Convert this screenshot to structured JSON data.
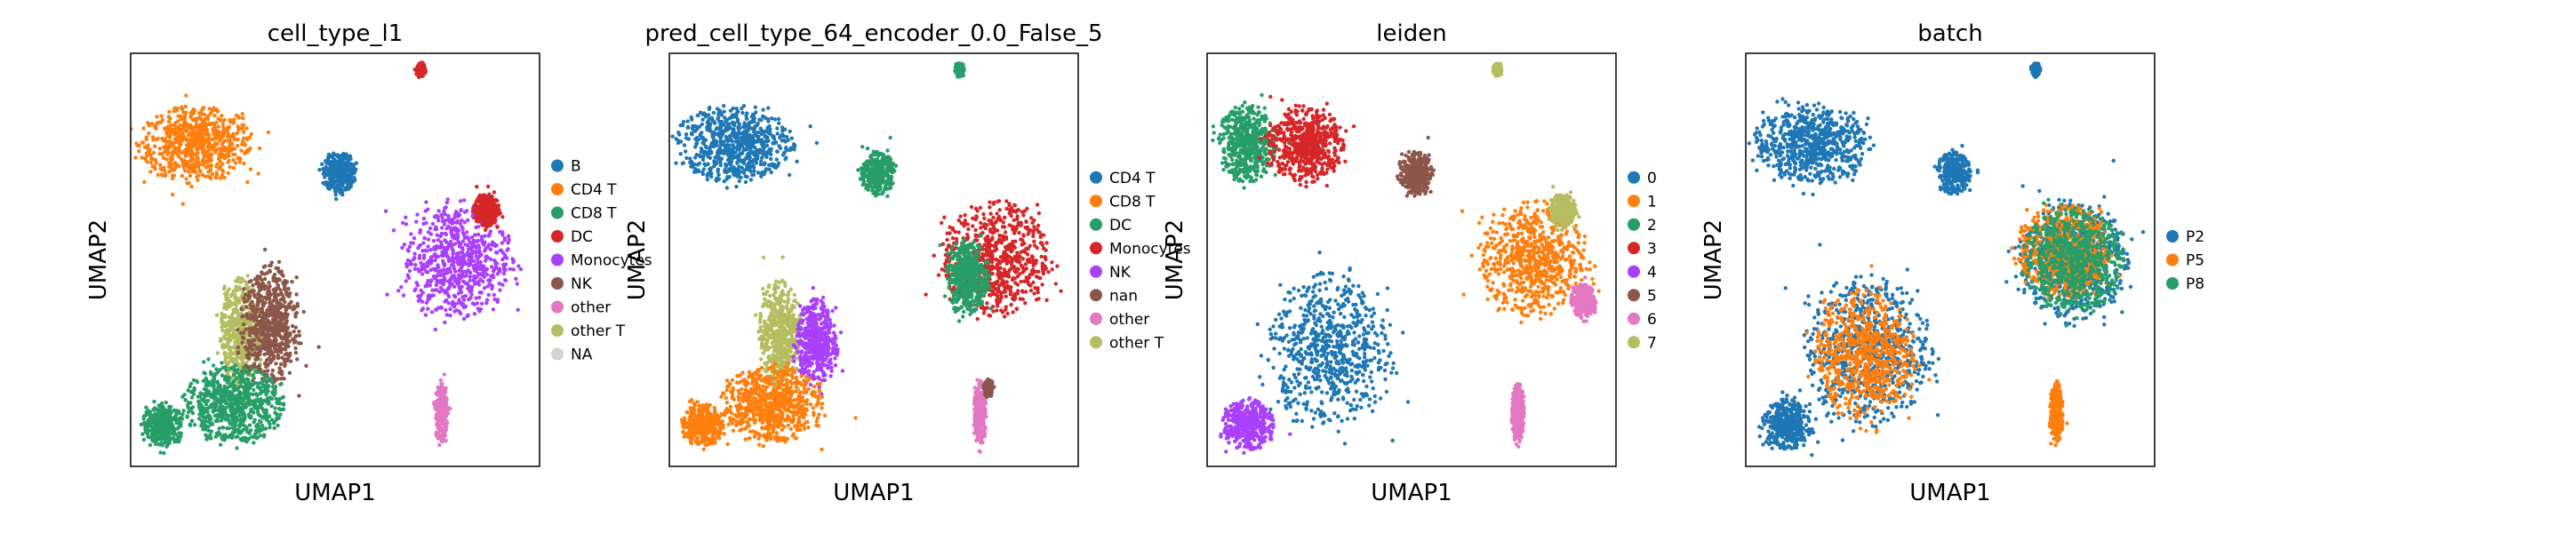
{
  "chart_data": [
    {
      "type": "scatter",
      "title": "cell_type_l1",
      "xlabel": "UMAP1",
      "ylabel": "UMAP2",
      "grid": false,
      "legend_placement": "right",
      "legend": [
        {
          "label": "B",
          "color": "#1f77b4"
        },
        {
          "label": "CD4 T",
          "color": "#ff7f0e"
        },
        {
          "label": "CD8 T",
          "color": "#279e68"
        },
        {
          "label": "DC",
          "color": "#d62728"
        },
        {
          "label": "Monocytes",
          "color": "#aa40fc"
        },
        {
          "label": "NK",
          "color": "#8c564b"
        },
        {
          "label": "other",
          "color": "#e377c2"
        },
        {
          "label": "other T",
          "color": "#b5bd61"
        },
        {
          "label": "NA",
          "color": "#d3d3d3"
        }
      ],
      "clusters": [
        {
          "name": "CD4 T",
          "color": "#ff7f0e",
          "cx": 0.16,
          "cy": 0.78,
          "rx": 0.14,
          "ry": 0.09
        },
        {
          "name": "B",
          "color": "#1f77b4",
          "cx": 0.51,
          "cy": 0.71,
          "rx": 0.04,
          "ry": 0.05
        },
        {
          "name": "DC",
          "color": "#d62728",
          "cx": 0.71,
          "cy": 0.96,
          "rx": 0.01,
          "ry": 0.015
        },
        {
          "name": "Monocytes",
          "color": "#aa40fc",
          "cx": 0.8,
          "cy": 0.5,
          "rx": 0.13,
          "ry": 0.14
        },
        {
          "name": "DC",
          "color": "#d62728",
          "cx": 0.87,
          "cy": 0.62,
          "rx": 0.03,
          "ry": 0.04
        },
        {
          "name": "other T",
          "color": "#b5bd61",
          "cx": 0.27,
          "cy": 0.32,
          "rx": 0.05,
          "ry": 0.13
        },
        {
          "name": "NK",
          "color": "#8c564b",
          "cx": 0.34,
          "cy": 0.34,
          "rx": 0.07,
          "ry": 0.14
        },
        {
          "name": "CD8 T",
          "color": "#279e68",
          "cx": 0.25,
          "cy": 0.15,
          "rx": 0.12,
          "ry": 0.09
        },
        {
          "name": "CD8 T",
          "color": "#279e68",
          "cx": 0.08,
          "cy": 0.1,
          "rx": 0.05,
          "ry": 0.05
        },
        {
          "name": "other",
          "color": "#e377c2",
          "cx": 0.76,
          "cy": 0.13,
          "rx": 0.015,
          "ry": 0.07
        }
      ]
    },
    {
      "type": "scatter",
      "title": "pred_cell_type_64_encoder_0.0_False_5",
      "xlabel": "UMAP1",
      "ylabel": "UMAP2",
      "grid": false,
      "legend_placement": "right",
      "legend": [
        {
          "label": "CD4 T",
          "color": "#1f77b4"
        },
        {
          "label": "CD8 T",
          "color": "#ff7f0e"
        },
        {
          "label": "DC",
          "color": "#279e68"
        },
        {
          "label": "Monocytes",
          "color": "#d62728"
        },
        {
          "label": "NK",
          "color": "#aa40fc"
        },
        {
          "label": "nan",
          "color": "#8c564b"
        },
        {
          "label": "other",
          "color": "#e377c2"
        },
        {
          "label": "other T",
          "color": "#b5bd61"
        }
      ],
      "clusters": [
        {
          "name": "CD4 T",
          "color": "#1f77b4",
          "cx": 0.16,
          "cy": 0.78,
          "rx": 0.14,
          "ry": 0.09
        },
        {
          "name": "DC",
          "color": "#279e68",
          "cx": 0.51,
          "cy": 0.71,
          "rx": 0.04,
          "ry": 0.05
        },
        {
          "name": "DC",
          "color": "#279e68",
          "cx": 0.71,
          "cy": 0.96,
          "rx": 0.01,
          "ry": 0.015
        },
        {
          "name": "Monocytes",
          "color": "#d62728",
          "cx": 0.8,
          "cy": 0.5,
          "rx": 0.13,
          "ry": 0.14
        },
        {
          "name": "DC",
          "color": "#279e68",
          "cx": 0.73,
          "cy": 0.46,
          "rx": 0.05,
          "ry": 0.09
        },
        {
          "name": "other T",
          "color": "#b5bd61",
          "cx": 0.27,
          "cy": 0.32,
          "rx": 0.05,
          "ry": 0.13
        },
        {
          "name": "NK",
          "color": "#aa40fc",
          "cx": 0.36,
          "cy": 0.3,
          "rx": 0.05,
          "ry": 0.1
        },
        {
          "name": "CD8 T",
          "color": "#ff7f0e",
          "cx": 0.25,
          "cy": 0.15,
          "rx": 0.12,
          "ry": 0.09
        },
        {
          "name": "CD8 T",
          "color": "#ff7f0e",
          "cx": 0.08,
          "cy": 0.1,
          "rx": 0.05,
          "ry": 0.05
        },
        {
          "name": "other",
          "color": "#e377c2",
          "cx": 0.76,
          "cy": 0.13,
          "rx": 0.015,
          "ry": 0.07
        },
        {
          "name": "nan",
          "color": "#8c564b",
          "cx": 0.78,
          "cy": 0.19,
          "rx": 0.01,
          "ry": 0.02
        }
      ]
    },
    {
      "type": "scatter",
      "title": "leiden",
      "xlabel": "UMAP1",
      "ylabel": "UMAP2",
      "grid": false,
      "legend_placement": "right",
      "legend": [
        {
          "label": "0",
          "color": "#1f77b4"
        },
        {
          "label": "1",
          "color": "#ff7f0e"
        },
        {
          "label": "2",
          "color": "#279e68"
        },
        {
          "label": "3",
          "color": "#d62728"
        },
        {
          "label": "4",
          "color": "#aa40fc"
        },
        {
          "label": "5",
          "color": "#8c564b"
        },
        {
          "label": "6",
          "color": "#e377c2"
        },
        {
          "label": "7",
          "color": "#b5bd61"
        }
      ],
      "clusters": [
        {
          "name": "2",
          "color": "#279e68",
          "cx": 0.1,
          "cy": 0.78,
          "rx": 0.07,
          "ry": 0.09
        },
        {
          "name": "3",
          "color": "#d62728",
          "cx": 0.24,
          "cy": 0.78,
          "rx": 0.09,
          "ry": 0.09
        },
        {
          "name": "5",
          "color": "#8c564b",
          "cx": 0.51,
          "cy": 0.71,
          "rx": 0.04,
          "ry": 0.05
        },
        {
          "name": "7",
          "color": "#b5bd61",
          "cx": 0.71,
          "cy": 0.96,
          "rx": 0.01,
          "ry": 0.015
        },
        {
          "name": "1",
          "color": "#ff7f0e",
          "cx": 0.8,
          "cy": 0.5,
          "rx": 0.13,
          "ry": 0.14
        },
        {
          "name": "7",
          "color": "#b5bd61",
          "cx": 0.87,
          "cy": 0.62,
          "rx": 0.03,
          "ry": 0.04
        },
        {
          "name": "6",
          "color": "#e377c2",
          "cx": 0.92,
          "cy": 0.4,
          "rx": 0.03,
          "ry": 0.04
        },
        {
          "name": "0",
          "color": "#1f77b4",
          "cx": 0.3,
          "cy": 0.28,
          "rx": 0.15,
          "ry": 0.18
        },
        {
          "name": "4",
          "color": "#aa40fc",
          "cx": 0.1,
          "cy": 0.1,
          "rx": 0.06,
          "ry": 0.06
        },
        {
          "name": "6",
          "color": "#e377c2",
          "cx": 0.76,
          "cy": 0.13,
          "rx": 0.015,
          "ry": 0.07
        }
      ]
    },
    {
      "type": "scatter",
      "title": "batch",
      "xlabel": "UMAP1",
      "ylabel": "UMAP2",
      "grid": false,
      "legend_placement": "right",
      "legend": [
        {
          "label": "P2",
          "color": "#1f77b4"
        },
        {
          "label": "P5",
          "color": "#ff7f0e"
        },
        {
          "label": "P8",
          "color": "#279e68"
        }
      ],
      "clusters": [
        {
          "name": "P2",
          "color": "#1f77b4",
          "cx": 0.16,
          "cy": 0.78,
          "rx": 0.14,
          "ry": 0.09
        },
        {
          "name": "P2",
          "color": "#1f77b4",
          "cx": 0.51,
          "cy": 0.71,
          "rx": 0.04,
          "ry": 0.05
        },
        {
          "name": "P2",
          "color": "#1f77b4",
          "cx": 0.71,
          "cy": 0.96,
          "rx": 0.01,
          "ry": 0.015
        },
        {
          "name": "P2",
          "color": "#1f77b4",
          "cx": 0.8,
          "cy": 0.5,
          "rx": 0.13,
          "ry": 0.14
        },
        {
          "name": "P5",
          "color": "#ff7f0e",
          "cx": 0.78,
          "cy": 0.52,
          "rx": 0.11,
          "ry": 0.11
        },
        {
          "name": "P2",
          "color": "#1f77b4",
          "cx": 0.3,
          "cy": 0.28,
          "rx": 0.15,
          "ry": 0.18
        },
        {
          "name": "P5",
          "color": "#ff7f0e",
          "cx": 0.29,
          "cy": 0.27,
          "rx": 0.12,
          "ry": 0.15
        },
        {
          "name": "P2",
          "color": "#1f77b4",
          "cx": 0.1,
          "cy": 0.1,
          "rx": 0.06,
          "ry": 0.06
        },
        {
          "name": "P5",
          "color": "#ff7f0e",
          "cx": 0.76,
          "cy": 0.13,
          "rx": 0.015,
          "ry": 0.07
        },
        {
          "name": "P8",
          "color": "#279e68",
          "cx": 0.8,
          "cy": 0.5,
          "rx": 0.12,
          "ry": 0.12
        }
      ]
    }
  ]
}
